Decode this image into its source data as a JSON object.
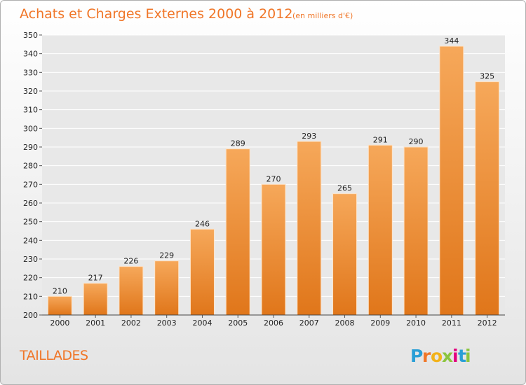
{
  "title": "Achats et Charges Externes 2000 à 2012",
  "subtitle": "(en milliers d'€)",
  "place_name": "TAILLADES",
  "brand": {
    "letters": [
      "P",
      "r",
      "o",
      "x",
      "i",
      "t",
      "i"
    ],
    "colors": [
      "#2a9fd6",
      "#f07628",
      "#f2b21a",
      "#8bc53f",
      "#e3007e",
      "#2a9fd6",
      "#8bc53f"
    ]
  },
  "colors": {
    "bar_light": "#f6a85a",
    "bar_dark": "#e0761a",
    "accent": "#f07628"
  },
  "chart_data": {
    "type": "bar",
    "categories": [
      "2000",
      "2001",
      "2002",
      "2003",
      "2004",
      "2005",
      "2006",
      "2007",
      "2008",
      "2009",
      "2010",
      "2011",
      "2012"
    ],
    "values": [
      210,
      217,
      226,
      229,
      246,
      289,
      270,
      293,
      265,
      291,
      290,
      344,
      325
    ],
    "ylim": [
      200,
      350
    ],
    "yticks": [
      200,
      210,
      220,
      230,
      240,
      250,
      260,
      270,
      280,
      290,
      300,
      310,
      320,
      330,
      340,
      350
    ],
    "grid": true,
    "xlabel": "",
    "ylabel": ""
  }
}
